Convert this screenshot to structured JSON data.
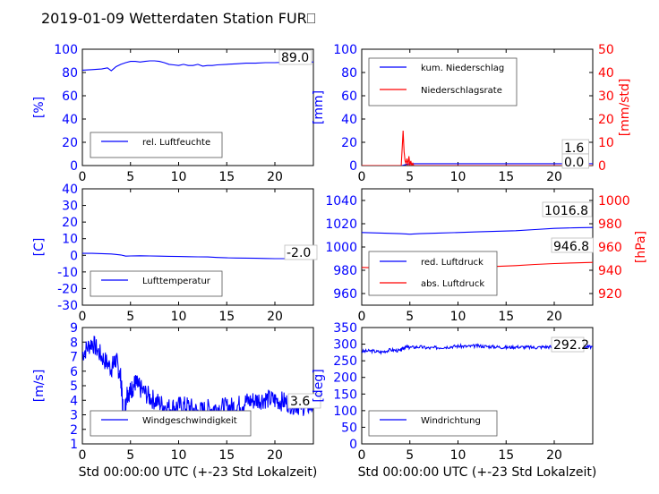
{
  "title": "2019-01-09 Wetterdaten Station FUR⎕",
  "colors": {
    "primary": "#0000ff",
    "secondary": "#ff0000"
  },
  "chart_data": [
    {
      "id": "humidity",
      "type": "line",
      "ylabel": "[%]",
      "xlabel": "",
      "xlim": [
        0,
        24
      ],
      "ylim": [
        0,
        100
      ],
      "xticks": [
        0,
        5,
        10,
        15,
        20
      ],
      "yticks": [
        0,
        20,
        40,
        60,
        80,
        100
      ],
      "legend_position": "lower-left",
      "series": [
        {
          "name": "rel. Luftfeuchte",
          "axis": "left",
          "x": [
            0,
            1,
            2,
            2.6,
            3,
            3.5,
            4,
            4.5,
            5,
            5.5,
            6,
            6.5,
            7,
            7.5,
            8,
            8.5,
            9,
            9.5,
            10,
            10.5,
            11,
            11.5,
            12,
            12.5,
            13,
            13.5,
            14,
            15,
            16,
            17,
            18,
            19,
            20,
            21,
            22,
            23,
            24
          ],
          "y": [
            82,
            82.5,
            83,
            84,
            81.5,
            85,
            87,
            88.5,
            89.5,
            89.5,
            89,
            89.5,
            90,
            90,
            89.5,
            88.5,
            87,
            86.5,
            86,
            87,
            86,
            86,
            87,
            85.5,
            86,
            86,
            86.5,
            87,
            87.5,
            88,
            88,
            88.5,
            88.5,
            88.8,
            89,
            89,
            89
          ]
        }
      ],
      "annotation": "89.0"
    },
    {
      "id": "precipitation",
      "type": "line",
      "ylabel": "[mm]",
      "y2label": "[mm/std]",
      "xlabel": "",
      "xlim": [
        0,
        24
      ],
      "ylim": [
        0,
        100
      ],
      "y2lim": [
        0,
        50
      ],
      "xticks": [
        0,
        5,
        10,
        15,
        20
      ],
      "yticks": [
        0,
        20,
        40,
        60,
        80,
        100
      ],
      "y2ticks": [
        0,
        10,
        20,
        30,
        40,
        50
      ],
      "legend_position": "upper-left",
      "series": [
        {
          "name": "kum. Niederschlag",
          "axis": "left",
          "x": [
            0,
            4.2,
            4.5,
            4.8,
            5.2,
            24
          ],
          "y": [
            0,
            0,
            0.8,
            1.3,
            1.6,
            1.6
          ]
        },
        {
          "name": "Niederschlagsrate",
          "axis": "right",
          "x": [
            0,
            4.1,
            4.2,
            4.3,
            4.4,
            4.5,
            4.6,
            4.7,
            4.8,
            4.9,
            5.0,
            5.1,
            5.2,
            5.3,
            5.4,
            24
          ],
          "y": [
            0,
            0,
            7,
            15,
            6,
            2,
            1,
            3,
            0,
            4,
            0,
            2,
            0,
            1,
            0,
            0
          ]
        }
      ],
      "annotations": [
        "1.6",
        "0.0"
      ]
    },
    {
      "id": "temperature",
      "type": "line",
      "ylabel": "[C]",
      "xlabel": "",
      "xlim": [
        0,
        24
      ],
      "ylim": [
        -30,
        40
      ],
      "xticks": [
        0,
        5,
        10,
        15,
        20
      ],
      "yticks": [
        -30,
        -20,
        -10,
        0,
        10,
        20,
        30,
        40
      ],
      "legend_position": "lower-left",
      "series": [
        {
          "name": "Lufttemperatur",
          "axis": "left",
          "x": [
            0,
            1,
            2,
            3,
            4,
            4.5,
            5,
            6,
            7,
            8,
            9,
            10,
            11,
            12,
            13,
            14,
            15,
            16,
            17,
            18,
            19,
            20,
            21,
            22,
            23,
            24
          ],
          "y": [
            1.2,
            1.2,
            1.0,
            0.8,
            0.2,
            -0.5,
            -0.4,
            -0.3,
            -0.4,
            -0.5,
            -0.6,
            -0.7,
            -0.8,
            -0.9,
            -1.0,
            -1.3,
            -1.5,
            -1.6,
            -1.7,
            -1.8,
            -1.9,
            -2.0,
            -2.0,
            -2.0,
            -2.0,
            -2.0
          ]
        }
      ],
      "annotation": "-2.0"
    },
    {
      "id": "pressure",
      "type": "line",
      "ylabel": "",
      "y2label": "[hPa]",
      "xlabel": "",
      "xlim": [
        0,
        24
      ],
      "ylim": [
        950,
        1050
      ],
      "y2lim": [
        910,
        1010
      ],
      "xticks": [
        0,
        5,
        10,
        15,
        20
      ],
      "yticks": [
        960,
        980,
        1000,
        1020,
        1040
      ],
      "y2ticks": [
        920,
        940,
        960,
        980,
        1000
      ],
      "legend_position": "lower-left",
      "series": [
        {
          "name": "red. Luftdruck",
          "axis": "left",
          "x": [
            0,
            2,
            4,
            5,
            6,
            8,
            10,
            12,
            14,
            16,
            18,
            20,
            22,
            24
          ],
          "y": [
            1012.5,
            1012,
            1011.5,
            1011,
            1011.5,
            1012,
            1012.5,
            1013,
            1013.5,
            1014,
            1015,
            1016,
            1016.5,
            1016.8
          ]
        },
        {
          "name": "abs. Luftdruck",
          "axis": "right",
          "x": [
            0,
            2,
            4,
            5,
            6,
            8,
            10,
            12,
            14,
            16,
            18,
            20,
            22,
            24
          ],
          "y": [
            942.5,
            942,
            941.5,
            941,
            941.5,
            942,
            942.3,
            942.8,
            943.3,
            944,
            945,
            945.8,
            946.3,
            946.8
          ]
        }
      ],
      "annotations": [
        "1016.8",
        "946.8"
      ]
    },
    {
      "id": "wind_speed",
      "type": "line",
      "ylabel": "[m/s]",
      "xlabel": "Std 00:00:00 UTC (+-23 Std Lokalzeit)",
      "xlim": [
        0,
        24
      ],
      "ylim": [
        1,
        9
      ],
      "xticks": [
        0,
        5,
        10,
        15,
        20
      ],
      "yticks": [
        1,
        2,
        3,
        4,
        5,
        6,
        7,
        8,
        9
      ],
      "legend_position": "lower-left",
      "series": [
        {
          "name": "Windgeschwindigkeit",
          "axis": "left",
          "x": [
            0,
            1,
            2,
            3,
            3.5,
            4,
            4.3,
            4.6,
            5,
            5.5,
            6,
            7,
            8,
            9,
            10,
            11,
            12,
            13,
            14,
            15,
            16,
            17,
            18,
            19,
            20,
            21,
            22,
            23,
            24
          ],
          "y": [
            7.2,
            8.0,
            7.0,
            6.2,
            6.8,
            5.5,
            2.5,
            4.5,
            4.6,
            5.2,
            4.8,
            4.2,
            3.8,
            3.5,
            3.6,
            3.6,
            3.2,
            3.4,
            3.5,
            3.5,
            3.6,
            3.9,
            4.0,
            4.1,
            4.0,
            3.9,
            3.7,
            3.6,
            3.6
          ]
        }
      ],
      "annotation": "3.6"
    },
    {
      "id": "wind_direction",
      "type": "line",
      "ylabel": "[deg]",
      "xlabel": "Std 00:00:00 UTC (+-23 Std Lokalzeit)",
      "xlim": [
        0,
        24
      ],
      "ylim": [
        0,
        350
      ],
      "xticks": [
        0,
        5,
        10,
        15,
        20
      ],
      "yticks": [
        0,
        50,
        100,
        150,
        200,
        250,
        300,
        350
      ],
      "legend_position": "lower-left",
      "series": [
        {
          "name": "Windrichtung",
          "axis": "left",
          "x": [
            0,
            1,
            2,
            3,
            4,
            4.5,
            5,
            6,
            7,
            8,
            9,
            10,
            11,
            12,
            13,
            14,
            15,
            16,
            17,
            18,
            19,
            20,
            21,
            22,
            23,
            24
          ],
          "y": [
            278,
            280,
            276,
            283,
            280,
            292,
            290,
            292,
            288,
            290,
            292,
            294,
            293,
            295,
            293,
            292,
            290,
            292,
            291,
            290,
            292,
            292,
            292,
            291,
            292,
            292
          ]
        }
      ],
      "annotation": "292.2"
    }
  ]
}
